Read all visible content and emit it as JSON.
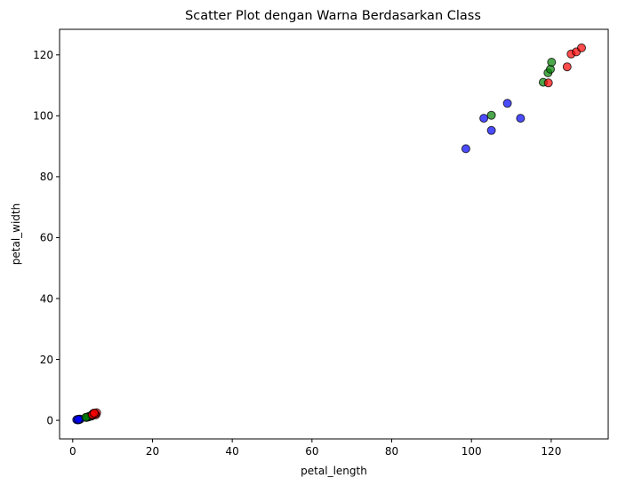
{
  "chart_data": {
    "type": "scatter",
    "title": "Scatter Plot dengan Warna Berdasarkan Class",
    "xlabel": "petal_length",
    "ylabel": "petal_width",
    "xlim": [
      -3.3,
      134.3
    ],
    "ylim": [
      -6.1,
      128.4
    ],
    "xticks": [
      0,
      20,
      40,
      60,
      80,
      100,
      120
    ],
    "yticks": [
      0,
      20,
      40,
      60,
      80,
      100,
      120
    ],
    "grid": false,
    "legend": "none",
    "series": [
      {
        "color": "#0000ff",
        "points": [
          [
            1.3,
            0.2
          ],
          [
            1.4,
            0.2
          ],
          [
            1.5,
            0.2
          ],
          [
            1.2,
            0.3
          ],
          [
            1.6,
            0.4
          ],
          [
            1.0,
            0.2
          ],
          [
            1.9,
            0.4
          ],
          [
            1.4,
            0.3
          ],
          [
            98.6,
            89.2
          ],
          [
            103.1,
            99.2
          ],
          [
            105.0,
            95.2
          ],
          [
            109.0,
            104.1
          ],
          [
            112.3,
            99.2
          ]
        ]
      },
      {
        "color": "#008000",
        "points": [
          [
            3.5,
            1.0
          ],
          [
            4.0,
            1.2
          ],
          [
            4.5,
            1.5
          ],
          [
            4.2,
            1.3
          ],
          [
            3.9,
            1.1
          ],
          [
            4.7,
            1.4
          ],
          [
            5.0,
            1.7
          ],
          [
            3.3,
            1.0
          ],
          [
            105.0,
            100.2
          ],
          [
            118.0,
            111.0
          ],
          [
            119.2,
            114.1
          ],
          [
            119.8,
            115.3
          ],
          [
            120.1,
            117.6
          ]
        ]
      },
      {
        "color": "#ff0000",
        "points": [
          [
            5.0,
            2.0
          ],
          [
            5.5,
            2.2
          ],
          [
            5.8,
            1.8
          ],
          [
            6.0,
            2.5
          ],
          [
            5.2,
            2.3
          ],
          [
            5.6,
            2.1
          ],
          [
            4.9,
            1.8
          ],
          [
            5.4,
            2.4
          ],
          [
            119.3,
            110.8
          ],
          [
            124.0,
            116.1
          ],
          [
            125.0,
            120.3
          ],
          [
            126.3,
            121.0
          ],
          [
            127.6,
            122.3
          ]
        ]
      }
    ]
  }
}
